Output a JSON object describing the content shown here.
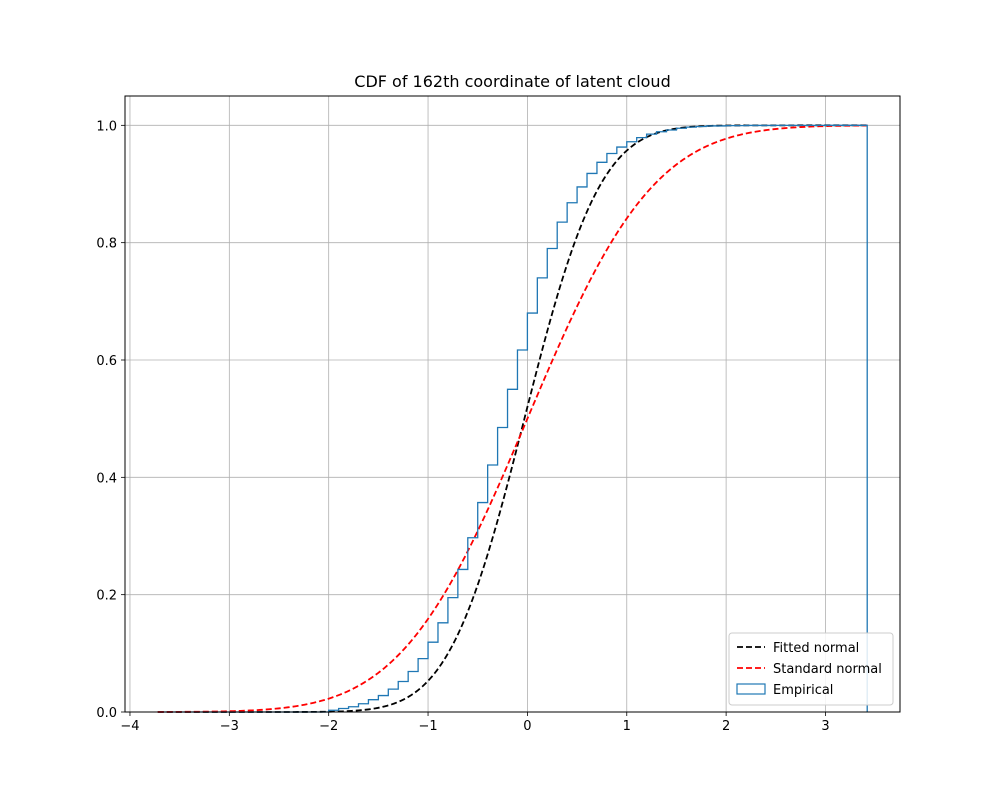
{
  "chart_data": {
    "type": "line",
    "title": "CDF of 162th coordinate of latent cloud",
    "xlabel": "",
    "ylabel": "",
    "xlim": [
      -4.05,
      3.75
    ],
    "ylim": [
      0.0,
      1.05
    ],
    "xticks": [
      -4,
      -3,
      -2,
      -1,
      0,
      1,
      2,
      3
    ],
    "yticks": [
      0.0,
      0.2,
      0.4,
      0.6,
      0.8,
      1.0
    ],
    "xtick_labels": [
      "−4",
      "−3",
      "−2",
      "−1",
      "0",
      "1",
      "2",
      "3"
    ],
    "ytick_labels": [
      "0.0",
      "0.2",
      "0.4",
      "0.6",
      "0.8",
      "1.0"
    ],
    "grid": true,
    "legend_position": "lower-right",
    "series": [
      {
        "name": "Fitted normal",
        "kind": "line",
        "style": "dashed",
        "color": "#000000",
        "x_range": [
          -3.72,
          3.42
        ],
        "mean": -0.03,
        "std": 0.6
      },
      {
        "name": "Standard normal",
        "kind": "line",
        "style": "dashed",
        "color": "#ff0000",
        "x_range": [
          -3.72,
          3.42
        ],
        "mean": 0.0,
        "std": 1.0
      },
      {
        "name": "Empirical",
        "kind": "step",
        "color": "#1f77b4",
        "x": [
          -3.72,
          -2.0,
          -1.9,
          -1.8,
          -1.7,
          -1.6,
          -1.5,
          -1.4,
          -1.3,
          -1.2,
          -1.1,
          -1.0,
          -0.9,
          -0.8,
          -0.7,
          -0.6,
          -0.5,
          -0.4,
          -0.3,
          -0.2,
          -0.1,
          0.0,
          0.1,
          0.2,
          0.3,
          0.4,
          0.5,
          0.6,
          0.7,
          0.8,
          0.9,
          1.0,
          1.1,
          1.2,
          1.3,
          1.4,
          1.5,
          1.6,
          1.7,
          1.8,
          2.0,
          2.2,
          2.5,
          3.0,
          3.42
        ],
        "y": [
          0.0,
          0.003,
          0.006,
          0.009,
          0.014,
          0.021,
          0.028,
          0.039,
          0.052,
          0.069,
          0.091,
          0.119,
          0.152,
          0.195,
          0.243,
          0.297,
          0.357,
          0.421,
          0.485,
          0.55,
          0.617,
          0.68,
          0.74,
          0.79,
          0.835,
          0.868,
          0.895,
          0.918,
          0.937,
          0.952,
          0.963,
          0.972,
          0.979,
          0.985,
          0.989,
          0.992,
          0.995,
          0.997,
          0.998,
          0.999,
          0.9995,
          0.9998,
          0.9999,
          1.0,
          1.0
        ]
      }
    ]
  }
}
